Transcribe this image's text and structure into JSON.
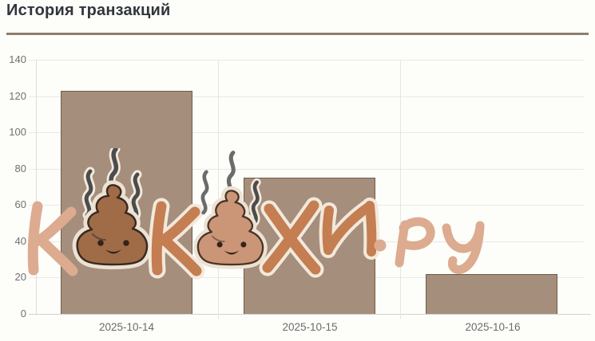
{
  "page": {
    "title": "История транзакций",
    "background": "#fdfdfa",
    "divider_color": "#8d7f6e"
  },
  "watermark": {
    "text": "КАКАХИ.ру",
    "letters": [
      "К",
      "poop-emoji",
      "К",
      "poop-emoji",
      "Х",
      "И",
      ".",
      "р",
      "у"
    ],
    "letter_color_light": "#dcab90",
    "letter_color_dark": "#c47e52",
    "outline_color": "#f2e9dc",
    "poop_color_1": "#a06c48",
    "poop_color_2": "#cb9577",
    "steam_color": "#4c4c4c"
  },
  "chart_data": {
    "type": "bar",
    "title": "История транзакций",
    "categories": [
      "2025-10-14",
      "2025-10-15",
      "2025-10-16"
    ],
    "values": [
      123,
      75,
      22
    ],
    "xlabel": "",
    "ylabel": "",
    "ylim": [
      0,
      140
    ],
    "yticks": [
      0,
      20,
      40,
      60,
      80,
      100,
      120,
      140
    ],
    "grid": true,
    "legend_position": "none",
    "bar_fill": "#a68e7c",
    "bar_border": "#6f5c48",
    "tick_label_color": "#707070"
  }
}
